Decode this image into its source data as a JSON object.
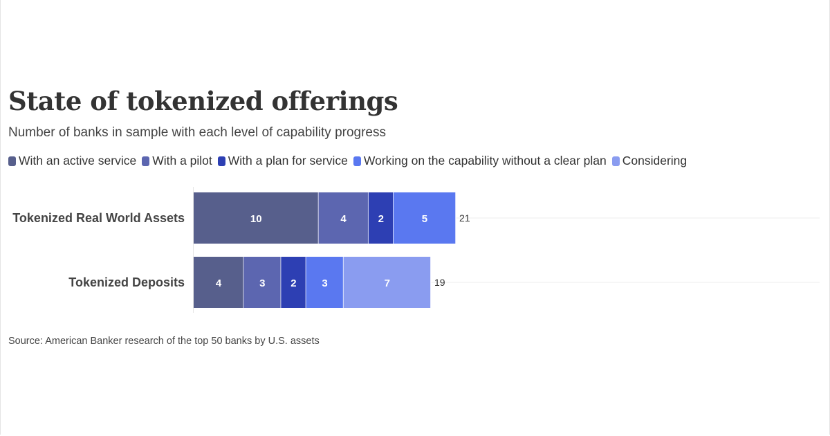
{
  "title": "State of tokenized offerings",
  "subtitle": "Number of banks in sample with each level of capability progress",
  "source": "Source: American Banker research of the top 50 banks by U.S. assets",
  "chart_data": {
    "type": "bar",
    "orientation": "horizontal",
    "stacked": true,
    "categories": [
      "Tokenized Real World Assets",
      "Tokenized Deposits"
    ],
    "series": [
      {
        "name": "With an active service",
        "color": "#575f8c",
        "values": [
          10,
          4
        ]
      },
      {
        "name": "With a pilot",
        "color": "#5c66b0",
        "values": [
          4,
          3
        ]
      },
      {
        "name": "With a plan for service",
        "color": "#2d3fb3",
        "values": [
          2,
          2
        ]
      },
      {
        "name": "Working on the capability without a clear plan",
        "color": "#5a78f0",
        "values": [
          5,
          3
        ]
      },
      {
        "name": "Considering",
        "color": "#8a9cf0",
        "values": [
          null,
          7
        ]
      }
    ],
    "totals": [
      21,
      19
    ],
    "legend_position": "top",
    "xlim": [
      0,
      50
    ],
    "grid": true
  }
}
